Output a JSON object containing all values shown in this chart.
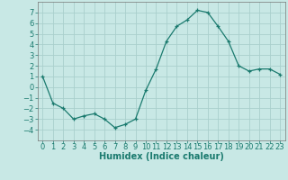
{
  "x": [
    0,
    1,
    2,
    3,
    4,
    5,
    6,
    7,
    8,
    9,
    10,
    11,
    12,
    13,
    14,
    15,
    16,
    17,
    18,
    19,
    20,
    21,
    22,
    23
  ],
  "y": [
    1,
    -1.5,
    -2,
    -3,
    -2.7,
    -2.5,
    -3,
    -3.8,
    -3.5,
    -3,
    -0.3,
    1.7,
    4.3,
    5.7,
    6.3,
    7.2,
    7.0,
    5.7,
    4.3,
    2.0,
    1.5,
    1.7,
    1.7,
    1.2
  ],
  "line_color": "#1a7a6e",
  "marker": "+",
  "marker_size": 3,
  "bg_color": "#c8e8e5",
  "grid_color": "#aacfcc",
  "xlabel": "Humidex (Indice chaleur)",
  "ylim": [
    -5,
    8
  ],
  "xlim": [
    -0.5,
    23.5
  ],
  "yticks": [
    -4,
    -3,
    -2,
    -1,
    0,
    1,
    2,
    3,
    4,
    5,
    6,
    7
  ],
  "xticks": [
    0,
    1,
    2,
    3,
    4,
    5,
    6,
    7,
    8,
    9,
    10,
    11,
    12,
    13,
    14,
    15,
    16,
    17,
    18,
    19,
    20,
    21,
    22,
    23
  ],
  "xlabel_fontsize": 7,
  "tick_fontsize": 6,
  "line_width": 0.9,
  "marker_edge_width": 0.9
}
